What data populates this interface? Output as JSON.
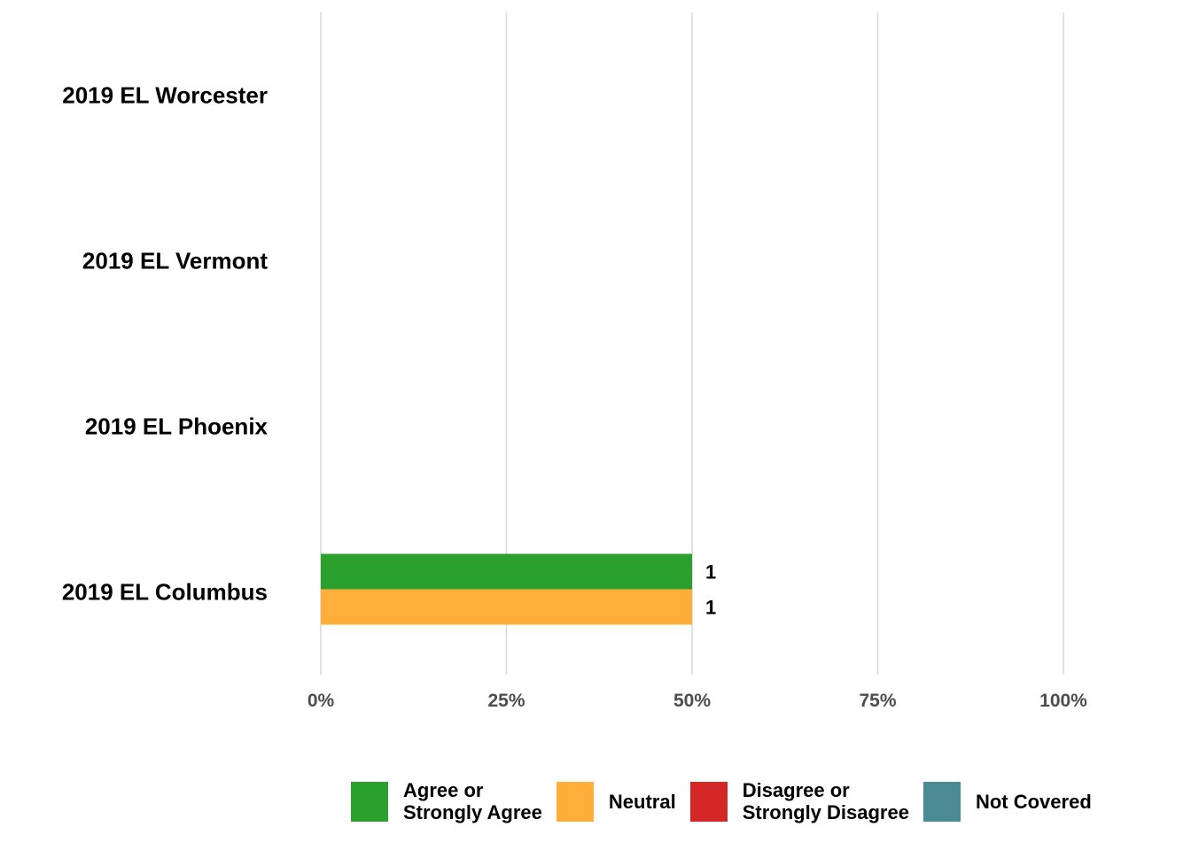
{
  "chart_data": {
    "type": "bar",
    "orientation": "horizontal",
    "categories": [
      "2019 EL Worcester",
      "2019 EL Vermont",
      "2019 EL Phoenix",
      "2019 EL Columbus"
    ],
    "series": [
      {
        "name": "Agree or\nStrongly Agree",
        "color": "#2ca02c",
        "values": [
          null,
          null,
          null,
          50
        ],
        "labels": [
          "",
          "",
          "",
          "1"
        ]
      },
      {
        "name": "Neutral",
        "color": "#ffae3b",
        "values": [
          null,
          null,
          null,
          50
        ],
        "labels": [
          "",
          "",
          "",
          "1"
        ]
      },
      {
        "name": "Disagree or\nStrongly Disagree",
        "color": "#d62728",
        "values": [
          null,
          null,
          null,
          null
        ],
        "labels": [
          "",
          "",
          "",
          ""
        ]
      },
      {
        "name": "Not Covered",
        "color": "#4a8a93",
        "values": [
          null,
          null,
          null,
          null
        ],
        "labels": [
          "",
          "",
          "",
          ""
        ]
      }
    ],
    "xlim": [
      0,
      100
    ],
    "x_ticks": [
      0,
      25,
      50,
      75,
      100
    ],
    "x_tick_labels": [
      "0%",
      "25%",
      "50%",
      "75%",
      "100%"
    ],
    "grid": "vertical",
    "legend_position": "bottom"
  }
}
